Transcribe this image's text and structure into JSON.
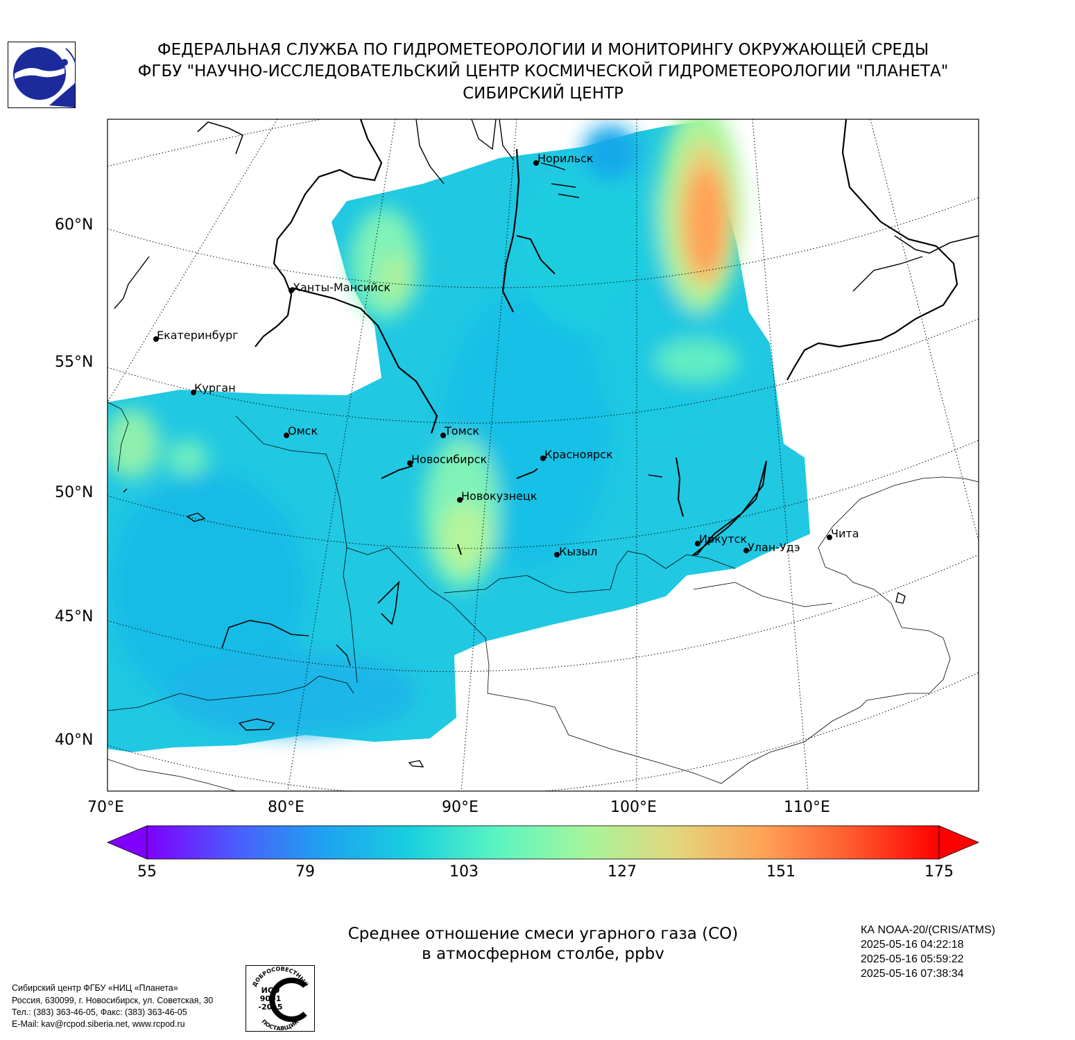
{
  "header": {
    "line1": "ФЕДЕРАЛЬНАЯ СЛУЖБА ПО ГИДРОМЕТЕОРОЛОГИИ И МОНИТОРИНГУ ОКРУЖАЮЩЕЙ СРЕДЫ",
    "line2": "ФГБУ \"НАУЧНО-ИССЛЕДОВАТЕЛЬСКИЙ ЦЕНТР КОСМИЧЕСКОЙ ГИДРОМЕТЕОРОЛОГИИ \"ПЛАНЕТА\"",
    "line3": "СИБИРСКИЙ ЦЕНТР"
  },
  "map": {
    "lat_labels": [
      "60°N",
      "55°N",
      "50°N",
      "45°N",
      "40°N"
    ],
    "lon_labels": [
      "70°E",
      "80°E",
      "90°E",
      "100°E",
      "110°E"
    ],
    "cities": [
      "Норильск",
      "Ханты-Мансийск",
      "Екатеринбург",
      "Курган",
      "Омск",
      "Томск",
      "Новосибирск",
      "Красноярск",
      "Новокузнецк",
      "Кызыл",
      "Иркутск",
      "Улан-Удэ",
      "Чита"
    ]
  },
  "colorbar": {
    "ticks": [
      "55",
      "79",
      "103",
      "127",
      "151",
      "175"
    ],
    "min": 55,
    "max": 175,
    "colors": [
      "#7f00ff",
      "#4b5cfc",
      "#1fa1f0",
      "#19d0de",
      "#5cf5c0",
      "#a6f59b",
      "#e3d67d",
      "#ffa256",
      "#ff5a2f",
      "#ff0000"
    ]
  },
  "caption": {
    "line1": "Среднее отношение смеси угарного газа (CO)",
    "line2": "в атмосферном столбе, ppbv"
  },
  "satellite": {
    "name": "КА NOAA-20/(CRIS/ATMS)",
    "times": [
      "2025-05-16 04:22:18",
      "2025-05-16 05:59:22",
      "2025-05-16 07:38:34"
    ]
  },
  "organization": {
    "lines": [
      "Сибирский центр ФГБУ «НИЦ «Планета»",
      "Россия, 630099, г. Новосибирск, ул. Советская, 30",
      "Тел.: (383) 363-46-05, Факс: (383) 363-46-05",
      "E-Mail: kav@rcpod.siberia.net, www.rcpod.ru"
    ]
  },
  "certification": {
    "top_text": "ДОБРОСОВЕСТНЫЙ",
    "line1": "ИСО",
    "line2": "9001",
    "line3": "-2015",
    "bottom_text": "ПОСТАВЩИК"
  }
}
